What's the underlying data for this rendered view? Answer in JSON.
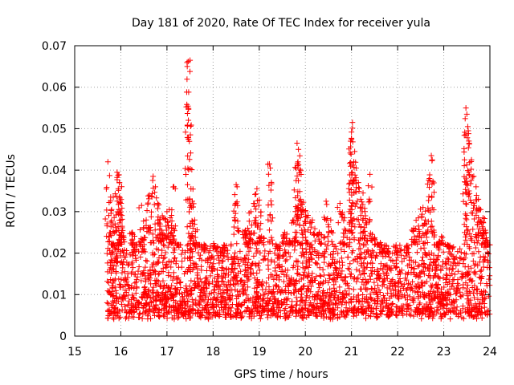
{
  "chart_data": {
    "type": "scatter",
    "title": "Day 181 of 2020, Rate Of TEC Index for receiver yula",
    "xlabel": "GPS time / hours",
    "ylabel": "ROTI / TECUs",
    "xlim": [
      15,
      24
    ],
    "ylim": [
      0,
      0.07
    ],
    "xticks": [
      15,
      16,
      17,
      18,
      19,
      20,
      21,
      22,
      23,
      24
    ],
    "xtick_labels": [
      "15",
      "16",
      "17",
      "18",
      "19",
      "20",
      "21",
      "22",
      "23",
      "24"
    ],
    "yticks": [
      0,
      0.01,
      0.02,
      0.03,
      0.04,
      0.05,
      0.06,
      0.07
    ],
    "ytick_labels": [
      "0",
      "0.01",
      "0.02",
      "0.03",
      "0.04",
      "0.05",
      "0.06",
      "0.07"
    ],
    "grid": true,
    "marker": "+",
    "color": "#ff0000",
    "series": [
      {
        "name": "ROTI",
        "points": [
          [
            15.72,
            0.042
          ],
          [
            15.78,
            0.0335
          ],
          [
            15.8,
            0.0305
          ],
          [
            15.85,
            0.022
          ],
          [
            15.92,
            0.0395
          ],
          [
            15.94,
            0.0388
          ],
          [
            15.97,
            0.037
          ],
          [
            15.98,
            0.0322
          ],
          [
            16.0,
            0.028
          ],
          [
            16.02,
            0.025
          ],
          [
            16.25,
            0.025
          ],
          [
            16.3,
            0.022
          ],
          [
            16.45,
            0.0315
          ],
          [
            16.55,
            0.028
          ],
          [
            16.62,
            0.034
          ],
          [
            16.7,
            0.0385
          ],
          [
            16.75,
            0.036
          ],
          [
            16.8,
            0.032
          ],
          [
            16.85,
            0.0265
          ],
          [
            16.9,
            0.029
          ],
          [
            17.0,
            0.03
          ],
          [
            17.05,
            0.0305
          ],
          [
            17.1,
            0.025
          ],
          [
            17.15,
            0.036
          ],
          [
            17.25,
            0.022
          ],
          [
            17.46,
            0.0662
          ],
          [
            17.5,
            0.0665
          ],
          [
            17.44,
            0.065
          ],
          [
            17.47,
            0.0588
          ],
          [
            17.52,
            0.0355
          ],
          [
            17.55,
            0.0325
          ],
          [
            17.6,
            0.028
          ],
          [
            17.65,
            0.022
          ],
          [
            17.8,
            0.0205
          ],
          [
            18.05,
            0.021
          ],
          [
            18.2,
            0.018
          ],
          [
            18.5,
            0.0365
          ],
          [
            18.52,
            0.036
          ],
          [
            18.7,
            0.0255
          ],
          [
            18.75,
            0.026
          ],
          [
            18.82,
            0.03
          ],
          [
            18.88,
            0.032
          ],
          [
            18.95,
            0.0355
          ],
          [
            19.0,
            0.0328
          ],
          [
            19.05,
            0.024
          ],
          [
            19.22,
            0.0415
          ],
          [
            19.24,
            0.0405
          ],
          [
            19.4,
            0.021
          ],
          [
            19.55,
            0.025
          ],
          [
            19.65,
            0.023
          ],
          [
            19.75,
            0.028
          ],
          [
            19.82,
            0.0465
          ],
          [
            19.85,
            0.045
          ],
          [
            19.84,
            0.042
          ],
          [
            19.8,
            0.0375
          ],
          [
            19.9,
            0.033
          ],
          [
            19.95,
            0.0305
          ],
          [
            20.0,
            0.03
          ],
          [
            20.05,
            0.0285
          ],
          [
            20.15,
            0.028
          ],
          [
            20.3,
            0.025
          ],
          [
            20.45,
            0.0325
          ],
          [
            20.55,
            0.028
          ],
          [
            20.75,
            0.032
          ],
          [
            20.85,
            0.0285
          ],
          [
            20.95,
            0.03
          ],
          [
            21.0,
            0.0475
          ],
          [
            21.02,
            0.0515
          ],
          [
            21.0,
            0.0492
          ],
          [
            20.98,
            0.047
          ],
          [
            21.05,
            0.042
          ],
          [
            21.1,
            0.0405
          ],
          [
            21.15,
            0.037
          ],
          [
            21.2,
            0.033
          ],
          [
            21.25,
            0.0345
          ],
          [
            21.3,
            0.029
          ],
          [
            21.4,
            0.039
          ],
          [
            21.45,
            0.0245
          ],
          [
            21.6,
            0.022
          ],
          [
            21.75,
            0.02
          ],
          [
            22.0,
            0.019
          ],
          [
            22.2,
            0.02
          ],
          [
            22.35,
            0.026
          ],
          [
            22.45,
            0.0285
          ],
          [
            22.55,
            0.031
          ],
          [
            22.6,
            0.028
          ],
          [
            22.7,
            0.0375
          ],
          [
            22.73,
            0.0435
          ],
          [
            22.75,
            0.0425
          ],
          [
            22.85,
            0.022
          ],
          [
            22.95,
            0.024
          ],
          [
            23.1,
            0.0215
          ],
          [
            23.45,
            0.0425
          ],
          [
            23.48,
            0.055
          ],
          [
            23.5,
            0.0535
          ],
          [
            23.52,
            0.0505
          ],
          [
            23.55,
            0.0465
          ],
          [
            23.6,
            0.0425
          ],
          [
            23.65,
            0.0385
          ],
          [
            23.7,
            0.036
          ],
          [
            23.75,
            0.033
          ],
          [
            23.8,
            0.0305
          ],
          [
            23.85,
            0.0285
          ],
          [
            23.9,
            0.0255
          ],
          [
            23.95,
            0.022
          ]
        ],
        "baseline_band": [
          0.005,
          0.022
        ],
        "baseline_range_x": [
          15.7,
          24.0
        ]
      }
    ]
  }
}
